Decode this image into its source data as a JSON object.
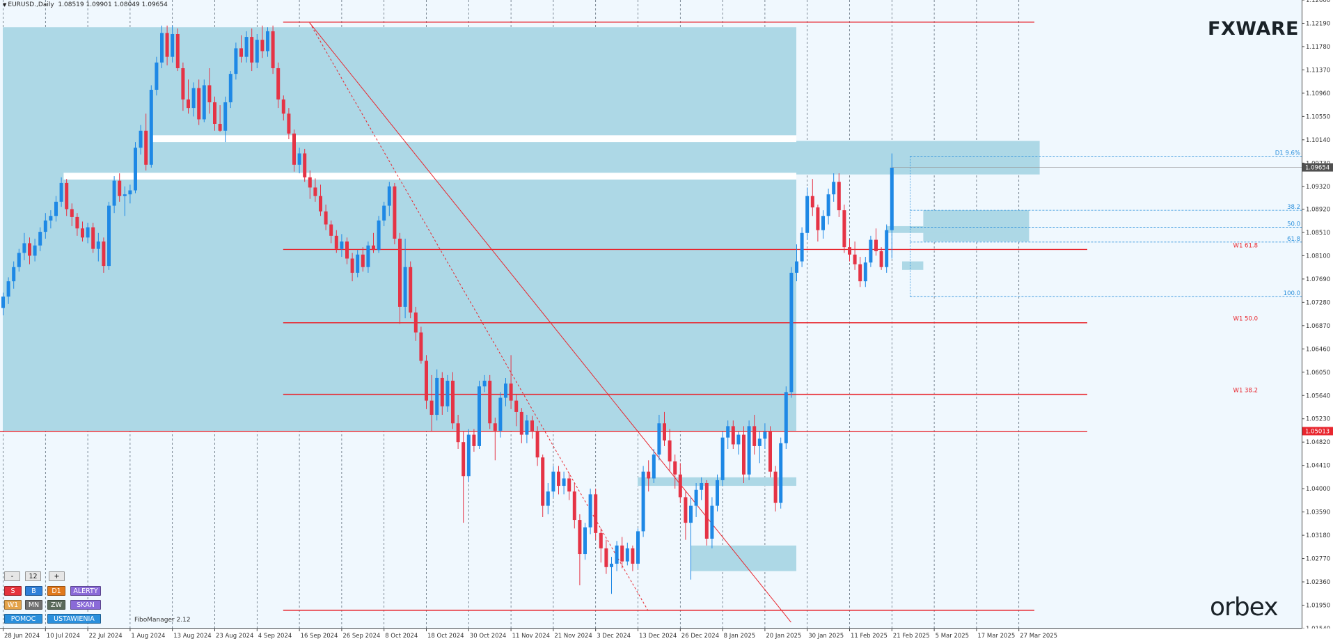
{
  "header": {
    "symbol": "EURUSD.",
    "timeframe": "Daily",
    "ohlc": "1.08519 1.09901 1.08049 1.09654"
  },
  "logos": {
    "top_brand": "FXWARE",
    "bottom_brand": "orbex"
  },
  "fibo_manager_label": "FiboManager 2.12",
  "panel": {
    "minus": "-",
    "count": "12",
    "plus": "+",
    "s": "S",
    "b": "B",
    "d1": "D1",
    "alerty": "ALERTY",
    "w1": "W1",
    "mn": "MN",
    "zw": "ZW",
    "skan": "SKAN",
    "pomoc": "POMOC",
    "ustawienia": "USTAWIENIA"
  },
  "colors": {
    "background": "#f0f8fe",
    "bull": "#1e88e5",
    "bear": "#e53345",
    "zone": "#add8e6",
    "level_line": "#e8262e",
    "fib_blue": "#2a8fdc",
    "price_tag": "#505050",
    "level_tag": "#e8262e"
  },
  "chart_data": {
    "type": "candlestick",
    "symbol": "EURUSD.",
    "timeframe": "Daily",
    "ylim": [
      1.0154,
      1.126
    ],
    "y_ticks": [
      "1.12600",
      "1.12190",
      "1.11780",
      "1.11370",
      "1.10960",
      "1.10550",
      "1.10140",
      "1.09730",
      "1.09320",
      "1.08920",
      "1.08510",
      "1.08100",
      "1.07690",
      "1.07280",
      "1.06870",
      "1.06460",
      "1.06050",
      "1.05640",
      "1.05230",
      "1.04820",
      "1.04410",
      "1.04000",
      "1.03590",
      "1.03180",
      "1.02770",
      "1.02360",
      "1.01950",
      "1.01540"
    ],
    "x_labels": [
      "28 Jun 2024",
      "10 Jul 2024",
      "22 Jul 2024",
      "1 Aug 2024",
      "13 Aug 2024",
      "23 Aug 2024",
      "4 Sep 2024",
      "16 Sep 2024",
      "26 Sep 2024",
      "8 Oct 2024",
      "18 Oct 2024",
      "30 Oct 2024",
      "11 Nov 2024",
      "21 Nov 2024",
      "3 Dec 2024",
      "13 Dec 2024",
      "26 Dec 2024",
      "8 Jan 2025",
      "20 Jan 2025",
      "30 Jan 2025",
      "11 Feb 2025",
      "21 Feb 2025",
      "5 Mar 2025",
      "17 Mar 2025",
      "27 Mar 2025"
    ],
    "current_price": "1.09654",
    "marked_price": "1.05013",
    "candles": [
      [
        1.0718,
        1.0745,
        1.0705,
        1.0738
      ],
      [
        1.0738,
        1.0772,
        1.0725,
        1.0765
      ],
      [
        1.0765,
        1.08,
        1.0752,
        1.079
      ],
      [
        1.079,
        1.0822,
        1.0782,
        1.0815
      ],
      [
        1.0815,
        1.085,
        1.0802,
        1.0832
      ],
      [
        1.0832,
        1.0842,
        1.0795,
        1.081
      ],
      [
        1.081,
        1.084,
        1.08,
        1.0828
      ],
      [
        1.0828,
        1.086,
        1.0818,
        1.0852
      ],
      [
        1.0852,
        1.0885,
        1.084,
        1.0872
      ],
      [
        1.0872,
        1.089,
        1.0858,
        1.088
      ],
      [
        1.088,
        1.0915,
        1.087,
        1.0905
      ],
      [
        1.0905,
        1.0948,
        1.0896,
        1.0938
      ],
      [
        1.0938,
        1.0945,
        1.088,
        1.0892
      ],
      [
        1.0892,
        1.0902,
        1.0862,
        1.0878
      ],
      [
        1.0878,
        1.0885,
        1.0845,
        1.0858
      ],
      [
        1.0858,
        1.087,
        1.0835,
        1.0842
      ],
      [
        1.0842,
        1.0868,
        1.0832,
        1.086
      ],
      [
        1.086,
        1.0868,
        1.0815,
        1.0822
      ],
      [
        1.0822,
        1.085,
        1.08,
        1.0835
      ],
      [
        1.0835,
        1.0842,
        1.078,
        1.0792
      ],
      [
        1.0792,
        1.0905,
        1.0785,
        1.0898
      ],
      [
        1.0898,
        1.095,
        1.0885,
        1.0942
      ],
      [
        1.0942,
        1.0955,
        1.0905,
        1.0915
      ],
      [
        1.0915,
        1.0932,
        1.088,
        1.0918
      ],
      [
        1.0918,
        1.0935,
        1.0902,
        1.0925
      ],
      [
        1.0925,
        1.101,
        1.092,
        1.1
      ],
      [
        1.1,
        1.104,
        1.0988,
        1.103
      ],
      [
        1.103,
        1.106,
        1.096,
        1.097
      ],
      [
        1.097,
        1.111,
        1.0965,
        1.1102
      ],
      [
        1.1102,
        1.116,
        1.1092,
        1.115
      ],
      [
        1.115,
        1.1215,
        1.114,
        1.1202
      ],
      [
        1.1202,
        1.1215,
        1.1145,
        1.116
      ],
      [
        1.116,
        1.1215,
        1.115,
        1.12
      ],
      [
        1.12,
        1.121,
        1.1135,
        1.114
      ],
      [
        1.114,
        1.115,
        1.1065,
        1.1085
      ],
      [
        1.1085,
        1.112,
        1.106,
        1.107
      ],
      [
        1.107,
        1.1115,
        1.1055,
        1.1105
      ],
      [
        1.1105,
        1.112,
        1.104,
        1.105
      ],
      [
        1.105,
        1.112,
        1.1045,
        1.111
      ],
      [
        1.111,
        1.114,
        1.106,
        1.108
      ],
      [
        1.108,
        1.109,
        1.103,
        1.1042
      ],
      [
        1.1042,
        1.1075,
        1.1028,
        1.103
      ],
      [
        1.103,
        1.109,
        1.101,
        1.108
      ],
      [
        1.108,
        1.1135,
        1.107,
        1.113
      ],
      [
        1.113,
        1.1185,
        1.112,
        1.1175
      ],
      [
        1.1175,
        1.1198,
        1.115,
        1.116
      ],
      [
        1.116,
        1.1205,
        1.115,
        1.1195
      ],
      [
        1.1195,
        1.121,
        1.1135,
        1.115
      ],
      [
        1.115,
        1.12,
        1.114,
        1.119
      ],
      [
        1.119,
        1.1215,
        1.1158,
        1.117
      ],
      [
        1.117,
        1.1212,
        1.116,
        1.1205
      ],
      [
        1.1205,
        1.1215,
        1.113,
        1.114
      ],
      [
        1.114,
        1.115,
        1.107,
        1.1085
      ],
      [
        1.1085,
        1.1092,
        1.1048,
        1.106
      ],
      [
        1.106,
        1.107,
        1.1015,
        1.1025
      ],
      [
        1.1025,
        1.1032,
        1.0958,
        1.097
      ],
      [
        1.097,
        1.1,
        1.0955,
        1.099
      ],
      [
        1.099,
        1.0998,
        1.094,
        1.0948
      ],
      [
        1.0948,
        1.096,
        1.091,
        1.093
      ],
      [
        1.093,
        1.0946,
        1.0905,
        1.0915
      ],
      [
        1.0915,
        1.0935,
        1.088,
        1.0888
      ],
      [
        1.0888,
        1.09,
        1.0855,
        1.0865
      ],
      [
        1.0865,
        1.0872,
        1.0832,
        1.0845
      ],
      [
        1.0845,
        1.0855,
        1.0815,
        1.0822
      ],
      [
        1.0822,
        1.0848,
        1.0808,
        1.0835
      ],
      [
        1.0835,
        1.0842,
        1.0795,
        1.0805
      ],
      [
        1.0805,
        1.0815,
        1.0765,
        1.078
      ],
      [
        1.078,
        1.082,
        1.0772,
        1.0812
      ],
      [
        1.0812,
        1.0825,
        1.0782,
        1.079
      ],
      [
        1.079,
        1.0835,
        1.078,
        1.0828
      ],
      [
        1.0828,
        1.085,
        1.0815,
        1.082
      ],
      [
        1.082,
        1.088,
        1.0815,
        1.0872
      ],
      [
        1.0872,
        1.0905,
        1.0862,
        1.0898
      ],
      [
        1.0898,
        1.094,
        1.088,
        1.0932
      ],
      [
        1.0932,
        1.0938,
        1.083,
        1.084
      ],
      [
        1.084,
        1.085,
        1.069,
        1.072
      ],
      [
        1.072,
        1.084,
        1.07,
        1.079
      ],
      [
        1.079,
        1.08,
        1.07,
        1.071
      ],
      [
        1.071,
        1.072,
        1.066,
        1.0675
      ],
      [
        1.0675,
        1.0685,
        1.062,
        1.0625
      ],
      [
        1.0625,
        1.0635,
        1.054,
        1.0555
      ],
      [
        1.0555,
        1.06,
        1.05,
        1.053
      ],
      [
        1.053,
        1.061,
        1.052,
        1.0595
      ],
      [
        1.0595,
        1.0605,
        1.053,
        1.0545
      ],
      [
        1.0545,
        1.06,
        1.0535,
        1.059
      ],
      [
        1.059,
        1.0605,
        1.0505,
        1.0515
      ],
      [
        1.0515,
        1.053,
        1.047,
        1.0482
      ],
      [
        1.0482,
        1.05,
        1.034,
        1.0422
      ],
      [
        1.0422,
        1.0505,
        1.0412,
        1.0495
      ],
      [
        1.0495,
        1.0505,
        1.0465,
        1.0475
      ],
      [
        1.0475,
        1.059,
        1.047,
        1.058
      ],
      [
        1.058,
        1.06,
        1.057,
        1.059
      ],
      [
        1.059,
        1.06,
        1.0505,
        1.0515
      ],
      [
        1.0515,
        1.0525,
        1.045,
        1.0502
      ],
      [
        1.0502,
        1.057,
        1.049,
        1.056
      ],
      [
        1.056,
        1.0595,
        1.0545,
        1.0585
      ],
      [
        1.0585,
        1.0635,
        1.054,
        1.0555
      ],
      [
        1.0555,
        1.0565,
        1.051,
        1.0535
      ],
      [
        1.0535,
        1.0542,
        1.048,
        1.0495
      ],
      [
        1.0495,
        1.053,
        1.048,
        1.052
      ],
      [
        1.052,
        1.0528,
        1.0488,
        1.05
      ],
      [
        1.05,
        1.051,
        1.044,
        1.0455
      ],
      [
        1.0455,
        1.046,
        1.035,
        1.037
      ],
      [
        1.037,
        1.041,
        1.0355,
        1.0395
      ],
      [
        1.0395,
        1.044,
        1.0385,
        1.043
      ],
      [
        1.043,
        1.044,
        1.039,
        1.0405
      ],
      [
        1.0405,
        1.043,
        1.039,
        1.0418
      ],
      [
        1.0418,
        1.0428,
        1.038,
        1.0395
      ],
      [
        1.0395,
        1.041,
        1.033,
        1.0345
      ],
      [
        1.0345,
        1.0355,
        1.023,
        1.0285
      ],
      [
        1.0285,
        1.034,
        1.0275,
        1.0332
      ],
      [
        1.0332,
        1.04,
        1.032,
        1.039
      ],
      [
        1.039,
        1.04,
        1.031,
        1.0322
      ],
      [
        1.0322,
        1.033,
        1.027,
        1.0295
      ],
      [
        1.0295,
        1.031,
        1.025,
        1.0262
      ],
      [
        1.0262,
        1.028,
        1.0215,
        1.0268
      ],
      [
        1.0268,
        1.0308,
        1.0255,
        1.03
      ],
      [
        1.03,
        1.0315,
        1.026,
        1.0272
      ],
      [
        1.0272,
        1.0305,
        1.0265,
        1.0295
      ],
      [
        1.0295,
        1.03,
        1.0255,
        1.0268
      ],
      [
        1.0268,
        1.033,
        1.026,
        1.0325
      ],
      [
        1.0325,
        1.044,
        1.0315,
        1.043
      ],
      [
        1.043,
        1.045,
        1.0395,
        1.0418
      ],
      [
        1.0418,
        1.047,
        1.041,
        1.046
      ],
      [
        1.046,
        1.053,
        1.045,
        1.0515
      ],
      [
        1.0515,
        1.0535,
        1.0475,
        1.0485
      ],
      [
        1.0485,
        1.0505,
        1.043,
        1.0448
      ],
      [
        1.0448,
        1.046,
        1.04,
        1.0425
      ],
      [
        1.0425,
        1.0445,
        1.0375,
        1.0385
      ],
      [
        1.0385,
        1.0395,
        1.031,
        1.034
      ],
      [
        1.034,
        1.0385,
        1.024,
        1.037
      ],
      [
        1.037,
        1.041,
        1.035,
        1.0398
      ],
      [
        1.0398,
        1.042,
        1.038,
        1.041
      ],
      [
        1.041,
        1.0415,
        1.03,
        1.0312
      ],
      [
        1.0312,
        1.0385,
        1.0295,
        1.037
      ],
      [
        1.037,
        1.0425,
        1.036,
        1.0415
      ],
      [
        1.0415,
        1.05,
        1.0405,
        1.049
      ],
      [
        1.049,
        1.052,
        1.047,
        1.051
      ],
      [
        1.051,
        1.052,
        1.047,
        1.0478
      ],
      [
        1.0478,
        1.05,
        1.046,
        1.0495
      ],
      [
        1.0495,
        1.051,
        1.041,
        1.0425
      ],
      [
        1.0425,
        1.052,
        1.0415,
        1.051
      ],
      [
        1.051,
        1.053,
        1.046,
        1.0475
      ],
      [
        1.0475,
        1.05,
        1.0445,
        1.0488
      ],
      [
        1.0488,
        1.0515,
        1.047,
        1.05
      ],
      [
        1.05,
        1.051,
        1.042,
        1.043
      ],
      [
        1.043,
        1.044,
        1.036,
        1.0375
      ],
      [
        1.0375,
        1.049,
        1.0365,
        1.048
      ],
      [
        1.048,
        1.058,
        1.047,
        1.057
      ],
      [
        1.057,
        1.079,
        1.056,
        1.078
      ],
      [
        1.078,
        1.083,
        1.0765,
        1.08
      ],
      [
        1.08,
        1.086,
        1.079,
        1.085
      ],
      [
        1.085,
        1.093,
        1.0838,
        1.0915
      ],
      [
        1.0915,
        1.0945,
        1.088,
        1.0895
      ],
      [
        1.0895,
        1.09,
        1.0835,
        1.0855
      ],
      [
        1.0855,
        1.089,
        1.084,
        1.088
      ],
      [
        1.088,
        1.0928,
        1.0865,
        1.0918
      ],
      [
        1.0918,
        1.0955,
        1.0905,
        1.094
      ],
      [
        1.094,
        1.0955,
        1.0878,
        1.089
      ],
      [
        1.089,
        1.09,
        1.0815,
        1.0825
      ],
      [
        1.0825,
        1.084,
        1.08,
        1.0812
      ],
      [
        1.0812,
        1.0835,
        1.0785,
        1.0795
      ],
      [
        1.0795,
        1.0808,
        1.0755,
        1.0765
      ],
      [
        1.0765,
        1.0808,
        1.0755,
        1.0798
      ],
      [
        1.0798,
        1.0845,
        1.079,
        1.0838
      ],
      [
        1.0838,
        1.0858,
        1.081,
        1.0818
      ],
      [
        1.0818,
        1.0825,
        1.0785,
        1.079
      ],
      [
        1.079,
        1.0865,
        1.078,
        1.0855
      ],
      [
        1.0855,
        1.099,
        1.0805,
        1.0965
      ]
    ],
    "zones": [
      {
        "x": [
          0,
          150
        ],
        "y": [
          1.0501,
          1.1212
        ]
      },
      {
        "x": [
          35,
          150
        ],
        "y": [
          1.09435,
          1.10155
        ]
      },
      {
        "x": [
          150,
          196
        ],
        "y": [
          1.0953,
          1.1012
        ]
      },
      {
        "x": [
          120,
          150
        ],
        "y": [
          1.0405,
          1.042
        ]
      },
      {
        "x": [
          130,
          150
        ],
        "y": [
          1.0255,
          1.03
        ]
      },
      {
        "x": [
          170,
          174
        ],
        "y": [
          1.0785,
          1.08
        ]
      },
      {
        "x": [
          174,
          194
        ],
        "y": [
          1.0835,
          1.089
        ]
      },
      {
        "x": [
          167,
          179
        ],
        "y": [
          1.085,
          1.0862
        ]
      }
    ],
    "levels": [
      {
        "price": 1.1221,
        "x_from": 53,
        "x_to": 195,
        "label": ""
      },
      {
        "price": 1.0821,
        "x_from": 53,
        "x_to": 205,
        "label": "W1 61.8"
      },
      {
        "price": 1.0692,
        "x_from": 53,
        "x_to": 205,
        "label": "W1 50.0"
      },
      {
        "price": 1.0566,
        "x_from": 53,
        "x_to": 205,
        "label": "W1 38.2"
      },
      {
        "price": 1.0501,
        "x_from": 0,
        "x_to": 205,
        "label": ""
      },
      {
        "price": 1.0186,
        "x_from": 53,
        "x_to": 195,
        "label": ""
      }
    ],
    "trendlines": [
      {
        "from": [
          58,
          1.122
        ],
        "to": [
          149,
          1.0165
        ],
        "dashed": false
      },
      {
        "from": [
          58,
          1.122
        ],
        "to": [
          122,
          1.0185
        ],
        "dashed": true
      }
    ],
    "fib_levels": [
      {
        "label": "D1 9.6%",
        "price": 1.0985
      },
      {
        "label": "38.2",
        "price": 1.089
      },
      {
        "label": "50.0",
        "price": 1.086
      },
      {
        "label": "61.8",
        "price": 1.0834
      },
      {
        "label": "100.0",
        "price": 1.0738
      }
    ]
  }
}
